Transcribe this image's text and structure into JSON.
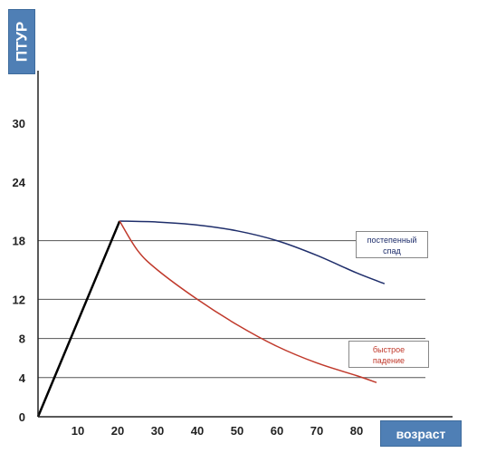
{
  "chart_data": {
    "type": "line",
    "ylabel": "ПТУР",
    "xlabel": "возраст",
    "x_ticks": [
      "10",
      "20",
      "30",
      "40",
      "50",
      "60",
      "70",
      "80"
    ],
    "y_ticks": [
      "0",
      "4",
      "8",
      "12",
      "18",
      "24",
      "30"
    ],
    "xlim": [
      0,
      90
    ],
    "ylim": [
      0,
      34
    ],
    "gridlines_y": [
      4,
      8,
      12,
      18
    ],
    "series": [
      {
        "name": "",
        "color": "#000000",
        "x": [
          0,
          20.5
        ],
        "y": [
          0,
          20
        ]
      },
      {
        "name": "постепенный спад",
        "color": "#1f2e6b",
        "x": [
          20.5,
          30,
          40,
          50,
          60,
          70,
          80,
          87
        ],
        "y": [
          20,
          19.9,
          19.6,
          19,
          18,
          16.5,
          14.7,
          13.6
        ]
      },
      {
        "name": "быстрое падение",
        "color": "#c0392b",
        "x": [
          20.5,
          25,
          30,
          40,
          50,
          60,
          70,
          80,
          85
        ],
        "y": [
          20,
          17,
          15,
          12,
          9.4,
          7.2,
          5.5,
          4.2,
          3.5
        ]
      }
    ],
    "legend": [
      {
        "label_line1": "постепенный",
        "label_line2": "спад",
        "color": "#1f2e6b"
      },
      {
        "label_line1": "быстрое",
        "label_line2": "падение",
        "color": "#c0392b"
      }
    ]
  }
}
